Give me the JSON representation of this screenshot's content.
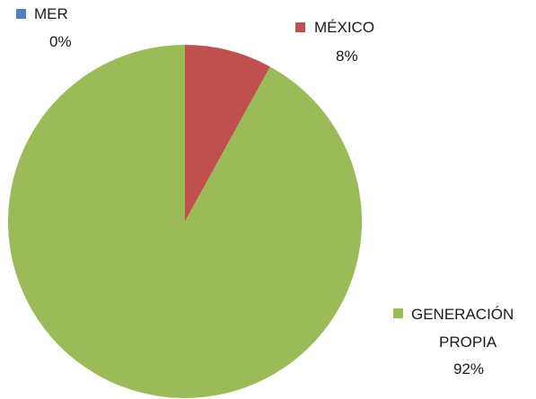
{
  "chart_data": {
    "type": "pie",
    "title": "",
    "start_angle_deg": 0,
    "direction": "clockwise",
    "slices": [
      {
        "label": "MER",
        "value": 0,
        "display": "0%",
        "color": "#4f81bd"
      },
      {
        "label": "MÉXICO",
        "value": 8,
        "display": "8%",
        "color": "#c0504d"
      },
      {
        "label": "GENERACIÓN PROPIA",
        "label_lines": [
          "GENERACIÓN",
          "PROPIA"
        ],
        "value": 92,
        "display": "92%",
        "color": "#9bbb59"
      }
    ]
  }
}
